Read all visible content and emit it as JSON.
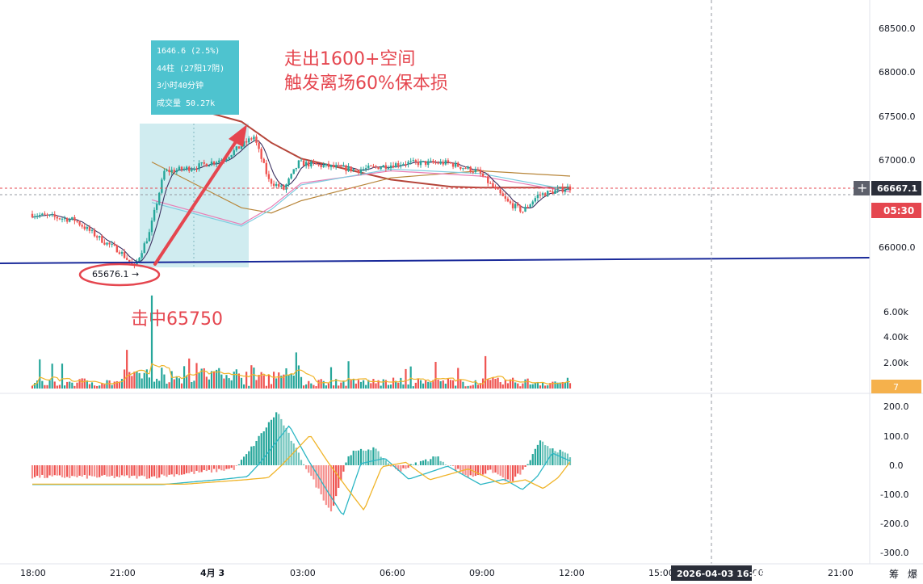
{
  "colors": {
    "up": "#26a69a",
    "down": "#ef5350",
    "price_tag_bg": "#2a2e39",
    "countdown_bg": "#e5464f",
    "annotation_red": "#e5464f",
    "support_line": "#1a2a9a",
    "measure_box": "#a9dce3",
    "measure_label_bg": "#4ec3cf",
    "ma_long": "#b5453a",
    "ma_mid": "#b8863a",
    "ma_fast_pink": "#e87fb6",
    "ma_fast_blue": "#7ecde0",
    "ma_dark": "#3a3060",
    "macd_dif": "#2bb6c4",
    "macd_dea": "#f0b429",
    "vol_line": "#f0b429"
  },
  "annotations": {
    "target_text_1": "走出1600+空间",
    "target_text_2": "触发离场60%保本损",
    "hit_text": "击中65750",
    "low_label": "65676.1 →"
  },
  "measure_tooltip": {
    "line1": "1646.6 (2.5%)",
    "line2": "44柱 (27阳17阴)",
    "line3": "3小时40分钟",
    "line4": "成交量 50.27k"
  },
  "price_axis": {
    "ticks": [
      "68500.0",
      "68000.0",
      "67500.0",
      "67000.0",
      "66000.0"
    ],
    "current_price": "66667.1",
    "countdown": "05:30"
  },
  "volume_axis": {
    "ticks": [
      "6.00k",
      "4.00k",
      "2.00k"
    ],
    "current": "7"
  },
  "macd_axis": {
    "ticks": [
      "200.0",
      "100.0",
      "0.0",
      "-100.0",
      "-200.0",
      "-300.0"
    ]
  },
  "time_axis": {
    "labels": [
      "18:00",
      "21:00",
      "4月 3",
      "03:00",
      "06:00",
      "09:00",
      "12:00",
      "15:00",
      "18:00",
      "21:00"
    ],
    "crosshair_label": "2026-04-03 16:45"
  },
  "footer_glyphs": [
    "筹",
    "爆"
  ],
  "chart_data": {
    "type": "candlestick",
    "title": "",
    "price_axis_ticks": [
      66000,
      66500,
      67000,
      67500,
      68000,
      68500
    ],
    "ylim_price": [
      65550,
      68550
    ],
    "support_line": {
      "start_price": 65760,
      "end_price": 65840
    },
    "measured_move": {
      "from_price": 65676.1,
      "to_price": 67322.7,
      "change": 1646.6,
      "change_pct": 2.5,
      "bars": 44
    },
    "anchors": [
      {
        "t": "18:00",
        "price": 66370
      },
      {
        "t": "19:30",
        "price": 66300
      },
      {
        "t": "20:30",
        "price": 66050
      },
      {
        "t": "21:00",
        "price": 65950
      },
      {
        "t": "21:30",
        "price": 65760
      },
      {
        "t": "22:00",
        "price": 66150
      },
      {
        "t": "22:30",
        "price": 66850
      },
      {
        "t": "23:30",
        "price": 66900
      },
      {
        "t": "00:30",
        "price": 67000
      },
      {
        "t": "01:30",
        "price": 67250
      },
      {
        "t": "02:00",
        "price": 66750
      },
      {
        "t": "02:30",
        "price": 66650
      },
      {
        "t": "03:00",
        "price": 66950
      },
      {
        "t": "05:00",
        "price": 66870
      },
      {
        "t": "06:30",
        "price": 66950
      },
      {
        "t": "08:00",
        "price": 66950
      },
      {
        "t": "09:00",
        "price": 66850
      },
      {
        "t": "10:00",
        "price": 66500
      },
      {
        "t": "10:30",
        "price": 66400
      },
      {
        "t": "11:00",
        "price": 66580
      },
      {
        "t": "12:00",
        "price": 66667
      }
    ],
    "moving_averages": [
      {
        "name": "",
        "color_key": "ma_long",
        "points": [
          [
            -2,
            67700
          ],
          [
            1,
            67420
          ],
          [
            2,
            67180
          ],
          [
            3,
            67000
          ],
          [
            6,
            66760
          ],
          [
            8,
            66680
          ],
          [
            9,
            66670
          ],
          [
            12,
            66670
          ]
        ]
      },
      {
        "name": "",
        "color_key": "ma_mid",
        "points": [
          [
            -2,
            66960
          ],
          [
            1,
            66440
          ],
          [
            2,
            66380
          ],
          [
            3,
            66520
          ],
          [
            6,
            66780
          ],
          [
            9,
            66860
          ],
          [
            12,
            66800
          ]
        ]
      },
      {
        "name": "",
        "color_key": "ma_fast_pink",
        "points": [
          [
            -2,
            66530
          ],
          [
            1,
            66250
          ],
          [
            2,
            66450
          ],
          [
            3,
            66720
          ],
          [
            6,
            66860
          ],
          [
            9,
            66800
          ],
          [
            12,
            66620
          ]
        ]
      },
      {
        "name": "",
        "color_key": "ma_fast_blue",
        "points": [
          [
            -2,
            66500
          ],
          [
            1,
            66230
          ],
          [
            2,
            66420
          ],
          [
            3,
            66700
          ],
          [
            6,
            66880
          ],
          [
            9,
            66830
          ],
          [
            12,
            66640
          ]
        ]
      }
    ],
    "volume": {
      "max_tick": 6000,
      "spike_time": "22:00",
      "spike_value": 7200
    },
    "macd": {
      "ylim": [
        -300,
        200
      ],
      "hist_anchors": [
        [
          -2,
          -40
        ],
        [
          0,
          -20
        ],
        [
          0.8,
          -10
        ],
        [
          1.2,
          40
        ],
        [
          2.2,
          185
        ],
        [
          2.8,
          60
        ],
        [
          3.5,
          -70
        ],
        [
          4,
          -160
        ],
        [
          4.6,
          40
        ],
        [
          5.4,
          60
        ],
        [
          6.2,
          -20
        ],
        [
          7.5,
          30
        ],
        [
          8.6,
          -40
        ],
        [
          9.4,
          -20
        ],
        [
          10,
          -60
        ],
        [
          10.5,
          -10
        ],
        [
          11,
          80
        ],
        [
          12,
          30
        ]
      ]
    }
  }
}
